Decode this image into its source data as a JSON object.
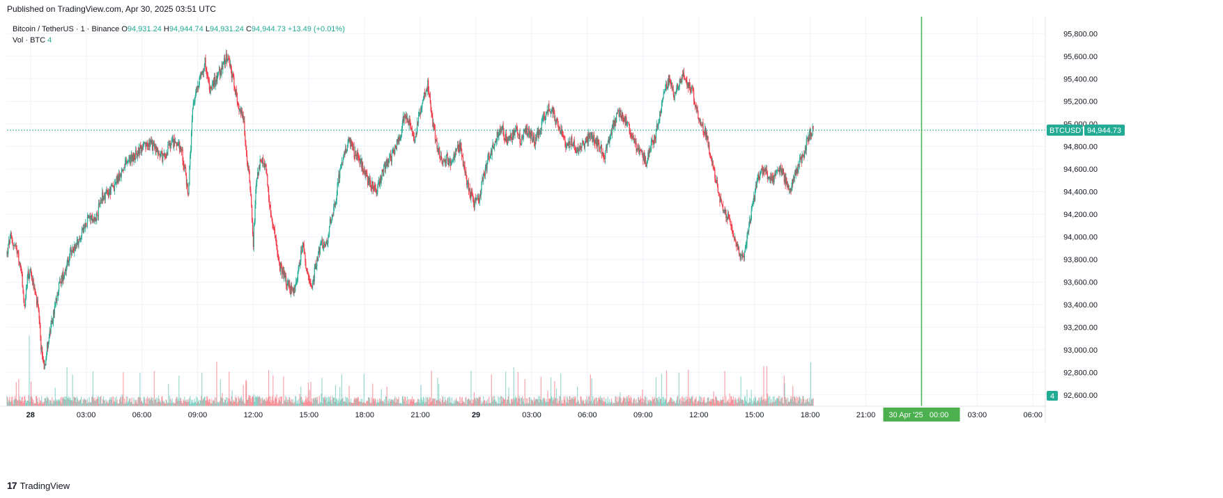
{
  "header": {
    "published": "Published on TradingView.com, Apr 30, 2025 03:51 UTC"
  },
  "legend": {
    "symbol": "Bitcoin / TetherUS · 1 · Binance",
    "open_label": "O",
    "open": "94,931.24",
    "high_label": "H",
    "high": "94,944.74",
    "low_label": "L",
    "low": "94,931.24",
    "close_label": "C",
    "close": "94,944.73",
    "change": "+13.49 (+0.01%)",
    "vol_label": "Vol · BTC",
    "vol_value": "4"
  },
  "price_tag": {
    "symbol": "BTCUSDT",
    "price": "94,944.73"
  },
  "vol_tag": "4",
  "crosshair_label": "30 Apr '25   00:00",
  "footer": {
    "brand": "TradingView",
    "logo": "17"
  },
  "colors": {
    "up": "#22ab94",
    "down": "#f23645",
    "grid": "#f0f3fa",
    "crosshair": "#4caf50",
    "tag_bg": "#22ab94"
  },
  "chart_data": {
    "type": "candlestick",
    "ylim": [
      92500,
      95950
    ],
    "y_ticks": [
      "95,800.00",
      "95,600.00",
      "95,400.00",
      "95,200.00",
      "95,000.00",
      "94,800.00",
      "94,600.00",
      "94,400.00",
      "94,200.00",
      "94,000.00",
      "93,800.00",
      "93,600.00",
      "93,400.00",
      "93,200.00",
      "93,000.00",
      "92,800.00",
      "92,600.00"
    ],
    "y_tick_values": [
      95800,
      95600,
      95400,
      95200,
      95000,
      94800,
      94600,
      94400,
      94200,
      94000,
      93800,
      93600,
      93400,
      93200,
      93000,
      92800,
      92600
    ],
    "x_ticks": [
      {
        "label": "28",
        "t": 0
      },
      {
        "label": "03:00",
        "t": 180
      },
      {
        "label": "06:00",
        "t": 360
      },
      {
        "label": "09:00",
        "t": 540
      },
      {
        "label": "12:00",
        "t": 720
      },
      {
        "label": "15:00",
        "t": 900
      },
      {
        "label": "18:00",
        "t": 1080
      },
      {
        "label": "21:00",
        "t": 1260
      },
      {
        "label": "29",
        "t": 1440
      },
      {
        "label": "03:00",
        "t": 1620
      },
      {
        "label": "06:00",
        "t": 1800
      },
      {
        "label": "09:00",
        "t": 1980
      },
      {
        "label": "12:00",
        "t": 2160
      },
      {
        "label": "15:00",
        "t": 2340
      },
      {
        "label": "18:00",
        "t": 2520
      },
      {
        "label": "21:00",
        "t": 2700
      },
      {
        "label": "30",
        "t": 2880
      },
      {
        "label": "03:00",
        "t": 3060
      },
      {
        "label": "06:00",
        "t": 3240
      }
    ],
    "t_range": [
      -76,
      3280
    ],
    "price_path": [
      [
        -76,
        93850
      ],
      [
        -65,
        94000
      ],
      [
        -50,
        93900
      ],
      [
        -40,
        93820
      ],
      [
        -30,
        93700
      ],
      [
        -20,
        93350
      ],
      [
        -10,
        93650
      ],
      [
        0,
        93700
      ],
      [
        15,
        93500
      ],
      [
        25,
        93350
      ],
      [
        35,
        93000
      ],
      [
        45,
        92850
      ],
      [
        55,
        93050
      ],
      [
        70,
        93250
      ],
      [
        90,
        93550
      ],
      [
        110,
        93700
      ],
      [
        130,
        93850
      ],
      [
        150,
        93950
      ],
      [
        170,
        94050
      ],
      [
        190,
        94200
      ],
      [
        210,
        94150
      ],
      [
        230,
        94350
      ],
      [
        250,
        94380
      ],
      [
        270,
        94450
      ],
      [
        290,
        94550
      ],
      [
        310,
        94650
      ],
      [
        330,
        94700
      ],
      [
        350,
        94760
      ],
      [
        370,
        94800
      ],
      [
        390,
        94820
      ],
      [
        410,
        94760
      ],
      [
        430,
        94700
      ],
      [
        450,
        94800
      ],
      [
        470,
        94850
      ],
      [
        490,
        94750
      ],
      [
        510,
        94380
      ],
      [
        525,
        95150
      ],
      [
        545,
        95400
      ],
      [
        565,
        95550
      ],
      [
        580,
        95300
      ],
      [
        600,
        95400
      ],
      [
        620,
        95500
      ],
      [
        635,
        95600
      ],
      [
        650,
        95450
      ],
      [
        670,
        95200
      ],
      [
        690,
        95000
      ],
      [
        700,
        94700
      ],
      [
        710,
        94450
      ],
      [
        720,
        93950
      ],
      [
        730,
        94500
      ],
      [
        745,
        94700
      ],
      [
        760,
        94600
      ],
      [
        775,
        94250
      ],
      [
        790,
        94000
      ],
      [
        805,
        93750
      ],
      [
        820,
        93650
      ],
      [
        835,
        93550
      ],
      [
        850,
        93500
      ],
      [
        865,
        93700
      ],
      [
        880,
        93950
      ],
      [
        895,
        93650
      ],
      [
        910,
        93550
      ],
      [
        925,
        93800
      ],
      [
        940,
        93950
      ],
      [
        955,
        93900
      ],
      [
        970,
        94150
      ],
      [
        985,
        94300
      ],
      [
        1000,
        94600
      ],
      [
        1015,
        94750
      ],
      [
        1030,
        94850
      ],
      [
        1045,
        94750
      ],
      [
        1060,
        94700
      ],
      [
        1075,
        94600
      ],
      [
        1090,
        94500
      ],
      [
        1105,
        94450
      ],
      [
        1120,
        94400
      ],
      [
        1135,
        94550
      ],
      [
        1150,
        94650
      ],
      [
        1165,
        94700
      ],
      [
        1180,
        94800
      ],
      [
        1195,
        94900
      ],
      [
        1210,
        95100
      ],
      [
        1225,
        95000
      ],
      [
        1240,
        94850
      ],
      [
        1255,
        95050
      ],
      [
        1270,
        95250
      ],
      [
        1285,
        95350
      ],
      [
        1300,
        95000
      ],
      [
        1315,
        94800
      ],
      [
        1330,
        94650
      ],
      [
        1345,
        94700
      ],
      [
        1360,
        94650
      ],
      [
        1375,
        94750
      ],
      [
        1390,
        94800
      ],
      [
        1405,
        94550
      ],
      [
        1420,
        94400
      ],
      [
        1435,
        94300
      ],
      [
        1450,
        94350
      ],
      [
        1465,
        94550
      ],
      [
        1480,
        94700
      ],
      [
        1495,
        94800
      ],
      [
        1510,
        94900
      ],
      [
        1525,
        94950
      ],
      [
        1540,
        94850
      ],
      [
        1555,
        94900
      ],
      [
        1570,
        94950
      ],
      [
        1585,
        94850
      ],
      [
        1600,
        94950
      ],
      [
        1615,
        94900
      ],
      [
        1630,
        94850
      ],
      [
        1645,
        94950
      ],
      [
        1660,
        95050
      ],
      [
        1675,
        95150
      ],
      [
        1690,
        95100
      ],
      [
        1705,
        95000
      ],
      [
        1720,
        94900
      ],
      [
        1735,
        94800
      ],
      [
        1750,
        94850
      ],
      [
        1765,
        94750
      ],
      [
        1780,
        94800
      ],
      [
        1795,
        94850
      ],
      [
        1810,
        94900
      ],
      [
        1825,
        94850
      ],
      [
        1840,
        94800
      ],
      [
        1855,
        94700
      ],
      [
        1870,
        94850
      ],
      [
        1885,
        95000
      ],
      [
        1900,
        95100
      ],
      [
        1915,
        95050
      ],
      [
        1930,
        95000
      ],
      [
        1945,
        94850
      ],
      [
        1960,
        94800
      ],
      [
        1975,
        94750
      ],
      [
        1990,
        94650
      ],
      [
        2005,
        94800
      ],
      [
        2020,
        94900
      ],
      [
        2035,
        95100
      ],
      [
        2050,
        95300
      ],
      [
        2065,
        95400
      ],
      [
        2080,
        95250
      ],
      [
        2095,
        95350
      ],
      [
        2110,
        95450
      ],
      [
        2125,
        95350
      ],
      [
        2140,
        95300
      ],
      [
        2155,
        95100
      ],
      [
        2170,
        95000
      ],
      [
        2185,
        94900
      ],
      [
        2200,
        94700
      ],
      [
        2215,
        94500
      ],
      [
        2230,
        94300
      ],
      [
        2245,
        94200
      ],
      [
        2260,
        94150
      ],
      [
        2275,
        94000
      ],
      [
        2290,
        93850
      ],
      [
        2305,
        93800
      ],
      [
        2320,
        94050
      ],
      [
        2335,
        94300
      ],
      [
        2350,
        94500
      ],
      [
        2365,
        94600
      ],
      [
        2380,
        94550
      ],
      [
        2395,
        94500
      ],
      [
        2410,
        94550
      ],
      [
        2425,
        94600
      ],
      [
        2440,
        94500
      ],
      [
        2455,
        94400
      ],
      [
        2470,
        94550
      ],
      [
        2485,
        94650
      ],
      [
        2500,
        94750
      ],
      [
        2515,
        94900
      ],
      [
        2530,
        94944
      ]
    ],
    "crosshair_t": 2880
  }
}
